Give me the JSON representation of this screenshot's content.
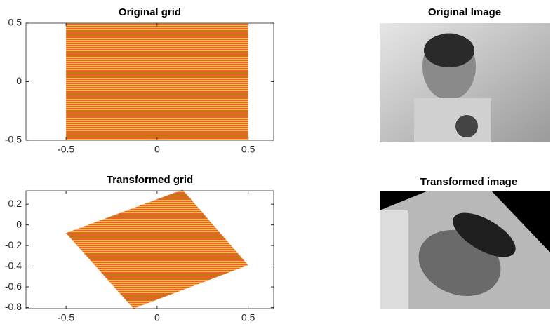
{
  "chart_data": [
    {
      "type": "polygon",
      "title": "Original grid",
      "color": "#e8632b",
      "x": [
        -0.5,
        0.5,
        0.5,
        -0.5
      ],
      "values": [
        -0.5,
        -0.5,
        0.5,
        0.5
      ],
      "xlim": [
        -0.72,
        0.64
      ],
      "ylim": [
        -0.5,
        0.5
      ],
      "xticks": [
        -0.5,
        0,
        0.5
      ],
      "yticks": [
        -0.5,
        0,
        0.5
      ]
    },
    {
      "type": "polygon",
      "title": "Transformed grid",
      "color": "#e8632b",
      "x": [
        -0.5,
        0.14,
        0.5,
        -0.13
      ],
      "values": [
        -0.08,
        0.34,
        -0.39,
        -0.81
      ],
      "xlim": [
        -0.72,
        0.64
      ],
      "ylim": [
        -0.81,
        0.33
      ],
      "xticks": [
        -0.5,
        0,
        0.5
      ],
      "yticks": [
        -0.8,
        -0.6,
        -0.4,
        -0.2,
        0,
        0.2
      ]
    }
  ],
  "images": [
    {
      "title": "Original Image"
    },
    {
      "title": "Transformed image"
    }
  ]
}
